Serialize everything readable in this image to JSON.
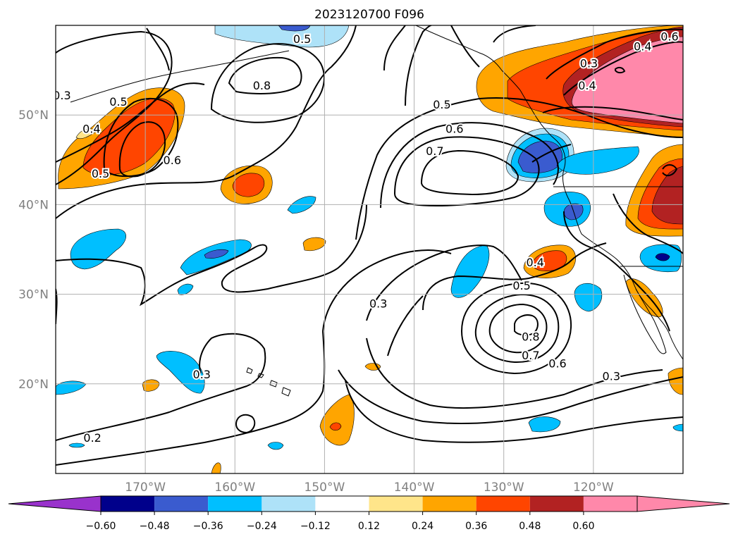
{
  "title": "2023120700 F096",
  "map": {
    "lon_range": [
      -180,
      -110
    ],
    "lat_range": [
      10,
      60
    ],
    "grid": true,
    "lon_ticks": [
      {
        "lon": -170,
        "label": "170°W"
      },
      {
        "lon": -160,
        "label": "160°W"
      },
      {
        "lon": -150,
        "label": "150°W"
      },
      {
        "lon": -140,
        "label": "140°W"
      },
      {
        "lon": -130,
        "label": "130°W"
      },
      {
        "lon": -120,
        "label": "120°W"
      }
    ],
    "lat_ticks": [
      {
        "lat": 20,
        "label": "20°N"
      },
      {
        "lat": 30,
        "label": "30°N"
      },
      {
        "lat": 40,
        "label": "40°N"
      },
      {
        "lat": 50,
        "label": "50°N"
      }
    ],
    "tick_label_color": "#808080"
  },
  "contour_labels": [
    {
      "text": "0.3",
      "lon": -179.3,
      "lat": 52.2
    },
    {
      "text": "0.4",
      "lon": -176.0,
      "lat": 48.5
    },
    {
      "text": "0.5",
      "lon": -173.0,
      "lat": 51.5
    },
    {
      "text": "0.6",
      "lon": -167.0,
      "lat": 45.0
    },
    {
      "text": "0.8",
      "lon": -157.0,
      "lat": 53.3
    },
    {
      "text": "0.5",
      "lon": -175.0,
      "lat": 43.5
    },
    {
      "text": "0.5",
      "lon": -152.5,
      "lat": 58.5
    },
    {
      "text": "0.6",
      "lon": -135.5,
      "lat": 48.5
    },
    {
      "text": "0.7",
      "lon": -137.7,
      "lat": 46.0
    },
    {
      "text": "0.5",
      "lon": -136.9,
      "lat": 51.2
    },
    {
      "text": "0.4",
      "lon": -114.5,
      "lat": 57.7
    },
    {
      "text": "0.3",
      "lon": -120.5,
      "lat": 55.8
    },
    {
      "text": "0.4",
      "lon": -120.7,
      "lat": 53.3
    },
    {
      "text": "0.6",
      "lon": -111.5,
      "lat": 58.8
    },
    {
      "text": "0.4",
      "lon": -126.5,
      "lat": 33.6
    },
    {
      "text": "0.5",
      "lon": -128.0,
      "lat": 31.0
    },
    {
      "text": "0.3",
      "lon": -144.0,
      "lat": 29.0
    },
    {
      "text": "0.8",
      "lon": -127.0,
      "lat": 25.3
    },
    {
      "text": "0.7",
      "lon": -127.0,
      "lat": 23.2
    },
    {
      "text": "0.6",
      "lon": -124.0,
      "lat": 22.3
    },
    {
      "text": "0.3",
      "lon": -118.0,
      "lat": 20.9
    },
    {
      "text": "0.3",
      "lon": -163.7,
      "lat": 21.1
    },
    {
      "text": "0.2",
      "lon": -175.9,
      "lat": 14.0
    }
  ],
  "colorbar": {
    "orientation": "horizontal",
    "extend": "both",
    "boundaries": [
      -0.72,
      -0.6,
      -0.48,
      -0.36,
      -0.24,
      -0.12,
      0.12,
      0.24,
      0.36,
      0.48,
      0.6,
      0.72
    ],
    "colors": [
      "#9932cc",
      "#00008b",
      "#3a5bcf",
      "#00bfff",
      "#aee2f8",
      "#ffffff",
      "#ffe58a",
      "#ffa500",
      "#ff4500",
      "#b22222",
      "#ff88aa",
      "#ff88aa"
    ],
    "under_color": "#9932cc",
    "over_color": "#ff88aa",
    "tick_labels": [
      "−0.60",
      "−0.48",
      "−0.36",
      "−0.24",
      "−0.12",
      "0.12",
      "0.24",
      "0.36",
      "0.48",
      "0.60"
    ]
  },
  "colors": {
    "grid": "#b0b0b0",
    "contour": "#000000",
    "coast": "#000000"
  }
}
